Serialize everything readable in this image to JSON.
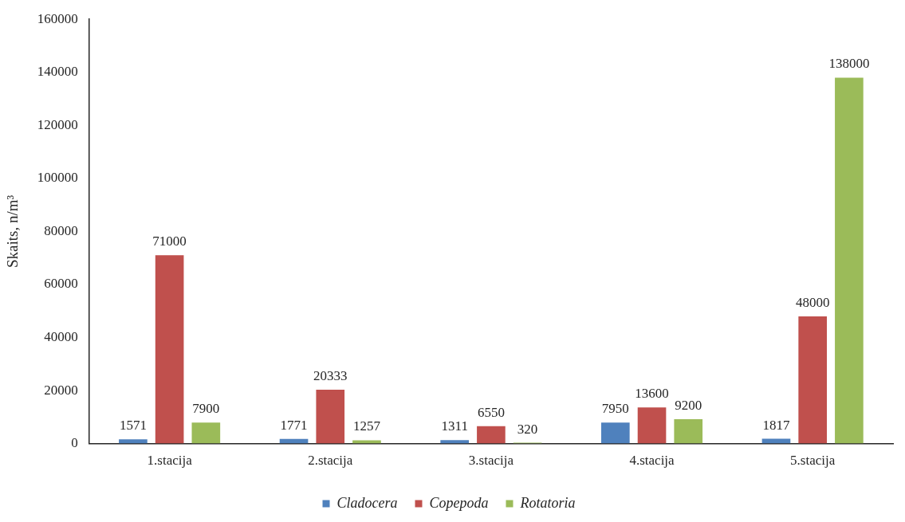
{
  "chart_data": {
    "type": "bar",
    "ylabel": "Skaits, n/m³",
    "categories": [
      "1.stacija",
      "2.stacija",
      "3.stacija",
      "4.stacija",
      "5.stacija"
    ],
    "series": [
      {
        "name": "Cladocera",
        "color": "#4f81bd",
        "values": [
          1571,
          1771,
          1311,
          7950,
          1817
        ]
      },
      {
        "name": "Copepoda",
        "color": "#c0504d",
        "values": [
          71000,
          20333,
          6550,
          13600,
          48000
        ]
      },
      {
        "name": "Rotatoria",
        "color": "#9bbb59",
        "values": [
          7900,
          1257,
          320,
          9200,
          138000
        ]
      }
    ],
    "ylim": [
      0,
      160000
    ],
    "yticks": [
      0,
      20000,
      40000,
      60000,
      80000,
      100000,
      120000,
      140000,
      160000
    ],
    "grid": false,
    "legend": "bottom",
    "data_labels": true
  }
}
